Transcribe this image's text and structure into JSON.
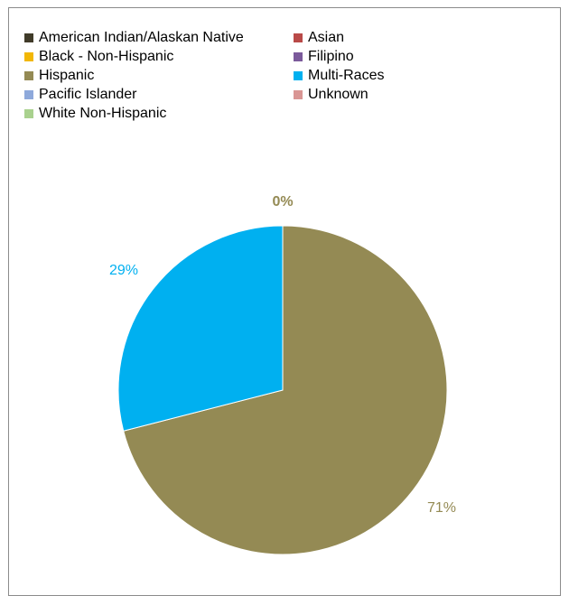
{
  "chart_data": {
    "type": "pie",
    "title": "",
    "categories": [
      "American Indian/Alaskan Native",
      "Asian",
      "Black - Non-Hispanic",
      "Filipino",
      "Hispanic",
      "Multi-Races",
      "Pacific Islander",
      "Unknown",
      "White Non-Hispanic"
    ],
    "values": [
      0,
      0,
      0,
      0,
      71,
      29,
      0,
      0,
      0
    ],
    "colors": [
      "#403b29",
      "#b94a48",
      "#f2b705",
      "#7b5a9b",
      "#948a54",
      "#00b0f0",
      "#8ea9db",
      "#d99694",
      "#a9d18e"
    ],
    "data_labels": [
      {
        "text": "0%",
        "color": "#948a54"
      },
      {
        "text": "29%",
        "color": "#00b0f0"
      },
      {
        "text": "71%",
        "color": "#948a54"
      }
    ],
    "legend_position": "top-left"
  }
}
